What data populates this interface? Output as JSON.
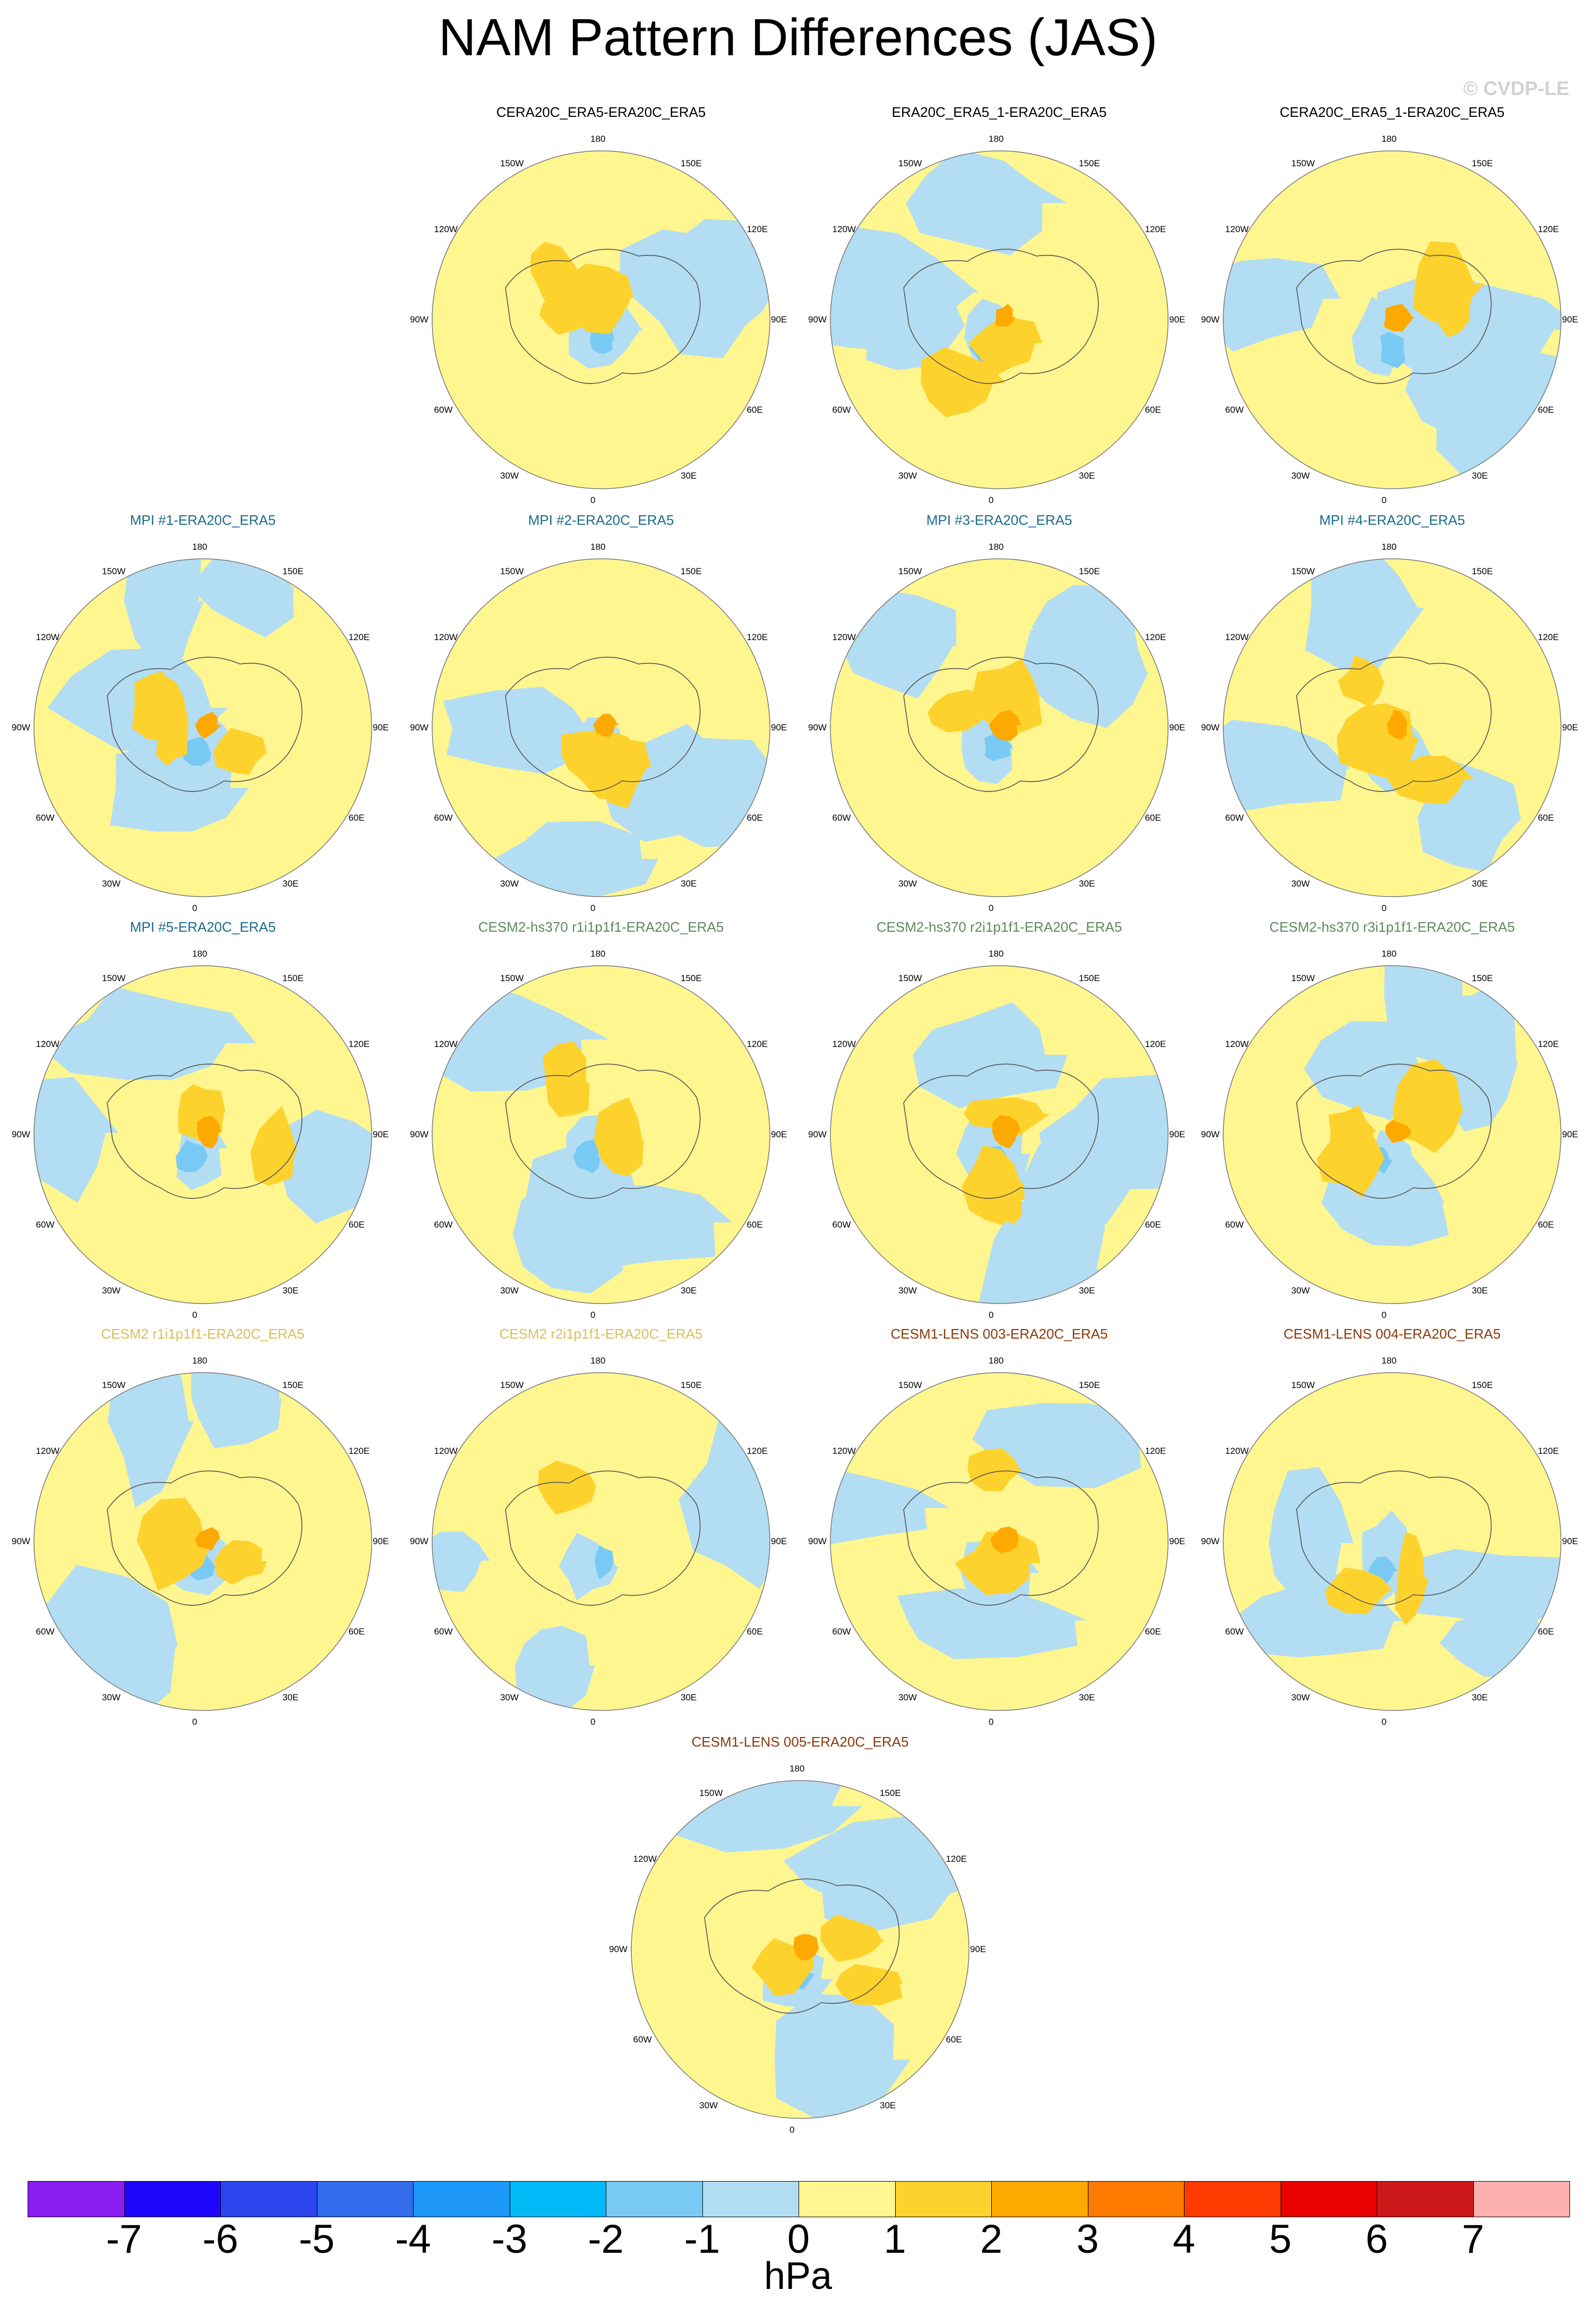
{
  "figure": {
    "title": "NAM Pattern Differences (JAS)",
    "copyright": "© CVDP-LE",
    "units": "hPa"
  },
  "longitude_labels": [
    "180",
    "150E",
    "120E",
    "90E",
    "60E",
    "30E",
    "0",
    "30W",
    "60W",
    "90W",
    "120W",
    "150W"
  ],
  "colorbar": {
    "ticks": [
      "-7",
      "-6",
      "-5",
      "-4",
      "-3",
      "-2",
      "-1",
      "0",
      "1",
      "2",
      "3",
      "4",
      "5",
      "6",
      "7"
    ],
    "colors": [
      "#8a1ef0",
      "#1f06fa",
      "#2b46ef",
      "#336cea",
      "#1e98f8",
      "#00b9f6",
      "#78caf4",
      "#b3ddf2",
      "#fff690",
      "#fdd22d",
      "#fea900",
      "#fe7a00",
      "#fe3a00",
      "#e90000",
      "#cc1818",
      "#fdb0b0"
    ]
  },
  "map_colors": {
    "ocean_like_negative": "#b3ddf2",
    "positive": "#fff690",
    "orange": "#fdd22d",
    "dark_orange": "#fea900",
    "mid_blue": "#78caf4"
  },
  "panels": [
    {
      "title": "CERA20C_ERA5-ERA20C_ERA5",
      "color": "#000000"
    },
    {
      "title": "ERA20C_ERA5_1-ERA20C_ERA5",
      "color": "#000000"
    },
    {
      "title": "CERA20C_ERA5_1-ERA20C_ERA5",
      "color": "#000000"
    },
    {
      "title": "MPI #1-ERA20C_ERA5",
      "color": "#1b6c8c"
    },
    {
      "title": "MPI #2-ERA20C_ERA5",
      "color": "#1b6c8c"
    },
    {
      "title": "MPI #3-ERA20C_ERA5",
      "color": "#1b6c8c"
    },
    {
      "title": "MPI #4-ERA20C_ERA5",
      "color": "#1b6c8c"
    },
    {
      "title": "MPI #5-ERA20C_ERA5",
      "color": "#1b6c8c"
    },
    {
      "title": "CESM2-hs370 r1i1p1f1-ERA20C_ERA5",
      "color": "#5d8a5d"
    },
    {
      "title": "CESM2-hs370 r2i1p1f1-ERA20C_ERA5",
      "color": "#5d8a5d"
    },
    {
      "title": "CESM2-hs370 r3i1p1f1-ERA20C_ERA5",
      "color": "#5d8a5d"
    },
    {
      "title": "CESM2 r1i1p1f1-ERA20C_ERA5",
      "color": "#d9bf5a"
    },
    {
      "title": "CESM2 r2i1p1f1-ERA20C_ERA5",
      "color": "#d9bf5a"
    },
    {
      "title": "CESM1-LENS 003-ERA20C_ERA5",
      "color": "#8c3a0a"
    },
    {
      "title": "CESM1-LENS 004-ERA20C_ERA5",
      "color": "#8c3a0a"
    },
    {
      "title": "CESM1-LENS 005-ERA20C_ERA5",
      "color": "#8c3a0a"
    }
  ]
}
